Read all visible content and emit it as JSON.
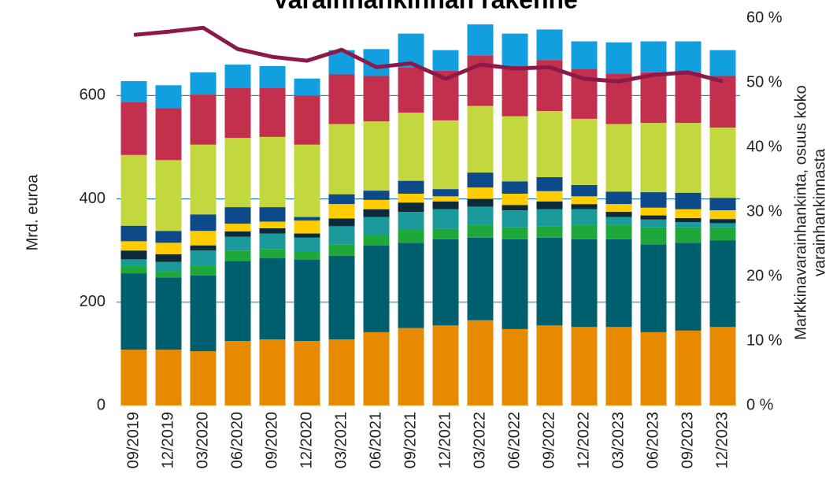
{
  "chart_data": {
    "type": "stacked_bar_line",
    "title": "Varainhankinnan rakenne",
    "ylabel": "Mrd. euroa",
    "y2label": [
      "Markkinavarainhankinta, osuus koko",
      "varainhankinnasta"
    ],
    "categories": [
      "09/2019",
      "12/2019",
      "03/2020",
      "06/2020",
      "09/2020",
      "12/2020",
      "03/2021",
      "06/2021",
      "09/2021",
      "12/2021",
      "03/2022",
      "06/2022",
      "09/2022",
      "12/2022",
      "03/2023",
      "06/2023",
      "09/2023",
      "12/2023"
    ],
    "series": [
      {
        "color": "#e88a00",
        "values": [
          108,
          108,
          105,
          125,
          128,
          125,
          128,
          142,
          150,
          155,
          165,
          148,
          155,
          152,
          152,
          142,
          145,
          152
        ]
      },
      {
        "color": "#005f6e",
        "values": [
          148,
          140,
          147,
          155,
          157,
          157,
          162,
          168,
          165,
          167,
          160,
          174,
          170,
          170,
          170,
          170,
          170,
          168
        ]
      },
      {
        "color": "#1fa83a",
        "values": [
          14,
          12,
          18,
          20,
          18,
          16,
          22,
          20,
          25,
          20,
          25,
          23,
          22,
          28,
          28,
          33,
          30,
          25
        ]
      },
      {
        "color": "#1a9a9a",
        "values": [
          13,
          18,
          30,
          27,
          30,
          27,
          35,
          35,
          35,
          38,
          35,
          33,
          33,
          30,
          15,
          15,
          10,
          8
        ]
      },
      {
        "color": "#0b2a3a",
        "values": [
          17,
          15,
          10,
          10,
          10,
          8,
          15,
          15,
          18,
          15,
          15,
          10,
          15,
          10,
          10,
          8,
          8,
          8
        ]
      },
      {
        "color": "#ffcc00",
        "values": [
          18,
          22,
          28,
          15,
          13,
          25,
          28,
          18,
          17,
          10,
          22,
          22,
          20,
          15,
          15,
          15,
          17,
          17
        ]
      },
      {
        "color": "#0d4a8a",
        "values": [
          30,
          23,
          32,
          32,
          28,
          7,
          19,
          18,
          25,
          14,
          29,
          24,
          27,
          22,
          24,
          30,
          32,
          24
        ]
      },
      {
        "color": "#c3d83e",
        "values": [
          137,
          137,
          135,
          134,
          136,
          140,
          136,
          134,
          132,
          133,
          129,
          126,
          128,
          128,
          131,
          134,
          135,
          136
        ]
      },
      {
        "color": "#c2304e",
        "values": [
          103,
          101,
          97,
          97,
          95,
          95,
          96,
          88,
          88,
          96,
          98,
          97,
          99,
          97,
          98,
          98,
          98,
          100
        ]
      },
      {
        "color": "#119fdf",
        "values": [
          40,
          44,
          43,
          45,
          42,
          33,
          47,
          52,
          65,
          40,
          60,
          63,
          59,
          53,
          60,
          60,
          60,
          50
        ]
      },
      {
        "color": "#8b1a4a",
        "axis": "y2",
        "line": true,
        "values": [
          57.4,
          57.9,
          58.5,
          55.2,
          54,
          53.4,
          55.1,
          52.4,
          53,
          50.6,
          52.8,
          52.2,
          52.4,
          50.6,
          50.2,
          51.2,
          51.6,
          50.2
        ]
      }
    ],
    "ylim": [
      0,
      750
    ],
    "yticks": [
      0,
      200,
      400,
      600
    ],
    "y2lim": [
      0,
      60
    ],
    "y2ticks": [
      {
        "value": 0,
        "label": "0 %"
      },
      {
        "value": 10,
        "label": "10 %"
      },
      {
        "value": 20,
        "label": "20 %"
      },
      {
        "value": 30,
        "label": "30 %"
      },
      {
        "value": 40,
        "label": "40 %"
      },
      {
        "value": 50,
        "label": "50 %"
      },
      {
        "value": 60,
        "label": "60 %"
      }
    ],
    "grid": true,
    "grid_color": "#2a86c4"
  }
}
